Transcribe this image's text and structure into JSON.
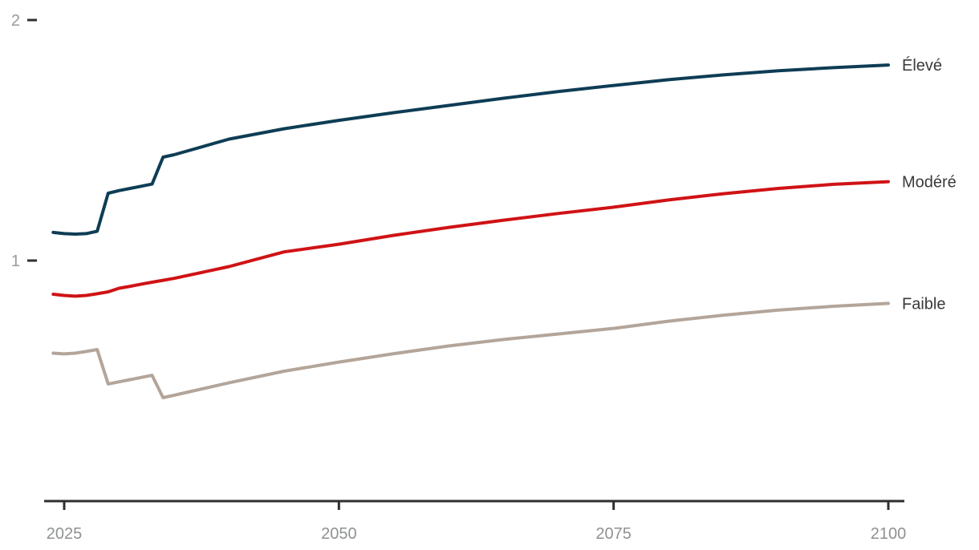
{
  "chart_data": {
    "type": "line",
    "title": "",
    "xlabel": "",
    "ylabel": "",
    "x_ticks": [
      "2025",
      "2050",
      "2075",
      "2100"
    ],
    "y_ticks": [
      "2",
      "1"
    ],
    "xlim": [
      2023.2,
      2101.5
    ],
    "ylim": [
      0,
      2.08
    ],
    "grid": false,
    "legend_position": "right-of-line-ends",
    "series": [
      {
        "name": "Élevé",
        "color": "#0e3d55",
        "points": [
          [
            2024,
            1.117
          ],
          [
            2025,
            1.112
          ],
          [
            2026,
            1.11
          ],
          [
            2027,
            1.112
          ],
          [
            2028,
            1.122
          ],
          [
            2029,
            1.28
          ],
          [
            2030,
            1.291
          ],
          [
            2031,
            1.3
          ],
          [
            2032,
            1.309
          ],
          [
            2033,
            1.318
          ],
          [
            2034,
            1.43
          ],
          [
            2035,
            1.44
          ],
          [
            2040,
            1.505
          ],
          [
            2045,
            1.548
          ],
          [
            2050,
            1.583
          ],
          [
            2055,
            1.615
          ],
          [
            2060,
            1.645
          ],
          [
            2065,
            1.675
          ],
          [
            2070,
            1.703
          ],
          [
            2075,
            1.728
          ],
          [
            2080,
            1.752
          ],
          [
            2085,
            1.772
          ],
          [
            2090,
            1.789
          ],
          [
            2095,
            1.802
          ],
          [
            2100,
            1.813
          ]
        ]
      },
      {
        "name": "Modéré",
        "color": "#d01215",
        "points": [
          [
            2024,
            0.86
          ],
          [
            2025,
            0.855
          ],
          [
            2026,
            0.852
          ],
          [
            2027,
            0.855
          ],
          [
            2028,
            0.862
          ],
          [
            2029,
            0.87
          ],
          [
            2030,
            0.885
          ],
          [
            2031,
            0.893
          ],
          [
            2032,
            0.902
          ],
          [
            2033,
            0.91
          ],
          [
            2034,
            0.918
          ],
          [
            2035,
            0.926
          ],
          [
            2040,
            0.975
          ],
          [
            2045,
            1.036
          ],
          [
            2050,
            1.068
          ],
          [
            2055,
            1.105
          ],
          [
            2060,
            1.138
          ],
          [
            2065,
            1.168
          ],
          [
            2070,
            1.196
          ],
          [
            2075,
            1.222
          ],
          [
            2080,
            1.252
          ],
          [
            2085,
            1.278
          ],
          [
            2090,
            1.3
          ],
          [
            2095,
            1.317
          ],
          [
            2100,
            1.328
          ]
        ]
      },
      {
        "name": "Faible",
        "color": "#b3a59a",
        "points": [
          [
            2024,
            0.615
          ],
          [
            2025,
            0.612
          ],
          [
            2026,
            0.615
          ],
          [
            2027,
            0.622
          ],
          [
            2028,
            0.63
          ],
          [
            2029,
            0.487
          ],
          [
            2030,
            0.496
          ],
          [
            2031,
            0.505
          ],
          [
            2032,
            0.514
          ],
          [
            2033,
            0.523
          ],
          [
            2034,
            0.43
          ],
          [
            2035,
            0.44
          ],
          [
            2040,
            0.492
          ],
          [
            2045,
            0.54
          ],
          [
            2050,
            0.578
          ],
          [
            2055,
            0.613
          ],
          [
            2060,
            0.645
          ],
          [
            2065,
            0.672
          ],
          [
            2070,
            0.695
          ],
          [
            2075,
            0.718
          ],
          [
            2080,
            0.748
          ],
          [
            2085,
            0.773
          ],
          [
            2090,
            0.794
          ],
          [
            2095,
            0.81
          ],
          [
            2100,
            0.822
          ]
        ]
      }
    ]
  },
  "style": {
    "axis_color": "#2f2f2f",
    "x_tick_label_color": "#8f9193",
    "y_tick_label_color": "#97999b",
    "series_label_color": "#3a3a3a",
    "background_color": "#ffffff",
    "line_width": 4
  }
}
